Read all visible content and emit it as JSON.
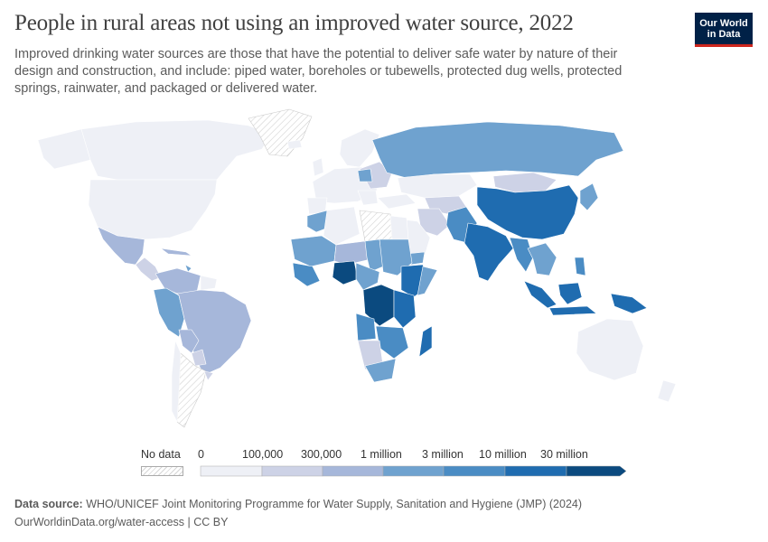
{
  "header": {
    "title": "People in rural areas not using an improved water source, 2022",
    "subtitle": "Improved drinking water sources are those that have the potential to deliver safe water by nature of their design and construction, and include: piped water, boreholes or tubewells, protected dug wells, protected springs, rainwater, and packaged or delivered water.",
    "logo_line1": "Our World",
    "logo_line2": "in Data"
  },
  "legend": {
    "no_data_label": "No data",
    "bins": [
      {
        "label": "0",
        "color": "#eef0f6"
      },
      {
        "label": "100,000",
        "color": "#cdd2e6"
      },
      {
        "label": "300,000",
        "color": "#a6b7da"
      },
      {
        "label": "1 million",
        "color": "#6fa2cf"
      },
      {
        "label": "3 million",
        "color": "#4a8cc4"
      },
      {
        "label": "10 million",
        "color": "#1f6cb0"
      },
      {
        "label": "30 million",
        "color": "#0b4a7f"
      }
    ]
  },
  "colors": {
    "ocean": "#ffffff",
    "border": "#ffffff",
    "no_data": "#f2f2f2"
  },
  "footer": {
    "source_label": "Data source:",
    "source_text": "WHO/UNICEF Joint Monitoring Programme for Water Supply, Sanitation and Hygiene (JMP) (2024)",
    "url_text": "OurWorldinData.org/water-access | CC BY"
  }
}
